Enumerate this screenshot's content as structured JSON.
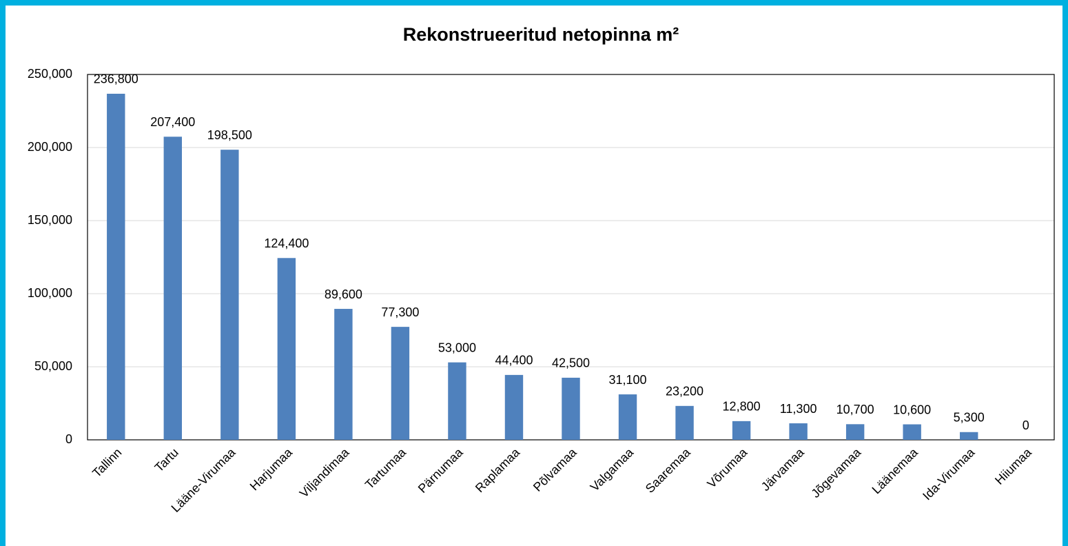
{
  "chart_data": {
    "type": "bar",
    "title": "Rekonstrueeritud netopinna m²",
    "categories": [
      "Tallinn",
      "Tartu",
      "Lääne-Virumaa",
      "Harjumaa",
      "Viljandimaa",
      "Tartumaa",
      "Pärnumaa",
      "Raplamaa",
      "Põlvamaa",
      "Valgamaa",
      "Saaremaa",
      "Võrumaa",
      "Järvamaa",
      "Jõgevamaa",
      "Läänemaa",
      "Ida-Virumaa",
      "Hiiumaa"
    ],
    "values": [
      236800,
      207400,
      198500,
      124400,
      89600,
      77300,
      53000,
      44400,
      42500,
      31100,
      23200,
      12800,
      11300,
      10700,
      10600,
      5300,
      0
    ],
    "value_labels": [
      "236,800",
      "207,400",
      "198,500",
      "124,400",
      "89,600",
      "77,300",
      "53,000",
      "44,400",
      "42,500",
      "31,100",
      "23,200",
      "12,800",
      "11,300",
      "10,700",
      "10,600",
      "5,300",
      "0"
    ],
    "color": "#4f81bd",
    "ylim": [
      0,
      250000
    ],
    "yticks": [
      {
        "value": 0,
        "label": "0"
      },
      {
        "value": 50000,
        "label": "50,000"
      },
      {
        "value": 100000,
        "label": "100,000"
      },
      {
        "value": 150000,
        "label": "150,000"
      },
      {
        "value": 200000,
        "label": "200,000"
      },
      {
        "value": 250000,
        "label": "250,000"
      }
    ],
    "grid": true
  }
}
